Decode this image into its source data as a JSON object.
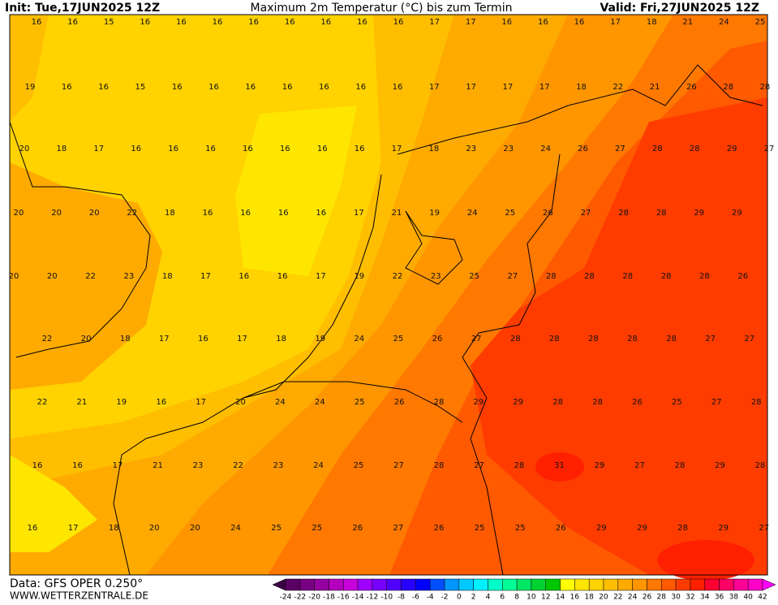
{
  "header": {
    "init": "Init: Tue,17JUN2025 12Z",
    "title": "Maximum 2m Temperatur (°C) bis zum Termin",
    "valid": "Valid: Fri,27JUN2025 12Z"
  },
  "map": {
    "rows": [
      [
        16,
        16,
        15,
        16,
        16,
        16,
        16,
        16,
        16,
        16,
        16,
        17,
        17,
        16,
        16,
        16,
        17,
        18,
        21,
        24,
        25
      ],
      [
        19,
        16,
        16,
        15,
        16,
        16,
        16,
        16,
        16,
        16,
        16,
        17,
        17,
        17,
        17,
        18,
        22,
        21,
        26,
        28,
        28
      ],
      [
        20,
        18,
        17,
        16,
        16,
        16,
        16,
        16,
        16,
        16,
        17,
        18,
        23,
        23,
        24,
        26,
        27,
        28,
        28,
        29,
        27
      ],
      [
        20,
        20,
        20,
        22,
        18,
        16,
        16,
        16,
        16,
        17,
        21,
        19,
        24,
        25,
        26,
        27,
        28,
        28,
        29,
        29
      ],
      [
        20,
        20,
        22,
        23,
        18,
        17,
        16,
        16,
        17,
        19,
        22,
        23,
        25,
        27,
        28,
        28,
        28,
        28,
        28,
        26
      ],
      [
        22,
        20,
        18,
        17,
        16,
        17,
        18,
        19,
        24,
        25,
        26,
        27,
        28,
        28,
        28,
        28,
        28,
        27,
        27
      ],
      [
        22,
        21,
        19,
        16,
        17,
        20,
        24,
        24,
        25,
        26,
        28,
        29,
        29,
        28,
        28,
        26,
        25,
        27,
        28
      ],
      [
        16,
        16,
        17,
        21,
        23,
        22,
        23,
        24,
        25,
        27,
        28,
        27,
        28,
        31,
        29,
        27,
        28,
        29,
        28
      ],
      [
        16,
        17,
        18,
        20,
        20,
        24,
        25,
        25,
        26,
        27,
        26,
        25,
        25,
        26,
        29,
        29,
        28,
        29,
        27
      ]
    ]
  },
  "colorbar": {
    "ticks": [
      -24,
      -22,
      -20,
      -18,
      -16,
      -14,
      -12,
      -10,
      -8,
      -6,
      -4,
      -2,
      0,
      2,
      4,
      6,
      8,
      10,
      12,
      14,
      16,
      18,
      20,
      22,
      24,
      26,
      28,
      30,
      32,
      34,
      36,
      38,
      40,
      42
    ],
    "colors": [
      "#3c0046",
      "#5a0064",
      "#780082",
      "#9600a0",
      "#b400be",
      "#c800dc",
      "#a000ff",
      "#7800ff",
      "#5000ff",
      "#2800ff",
      "#0000ff",
      "#0050ff",
      "#0096ff",
      "#00c8ff",
      "#00f0ff",
      "#00ffc8",
      "#00ff96",
      "#00e664",
      "#00d232",
      "#00c800",
      "#ffff00",
      "#ffe600",
      "#ffd200",
      "#ffbe00",
      "#ffaa00",
      "#ff9600",
      "#ff7800",
      "#ff5a00",
      "#ff3c00",
      "#ff2000",
      "#ff0032",
      "#ff0064",
      "#ff0096",
      "#ff00c8",
      "#ff00ff"
    ]
  },
  "footer": {
    "source": "Data: GFS OPER 0.250°",
    "site": "WWW.WETTERZENTRALE.DE"
  }
}
